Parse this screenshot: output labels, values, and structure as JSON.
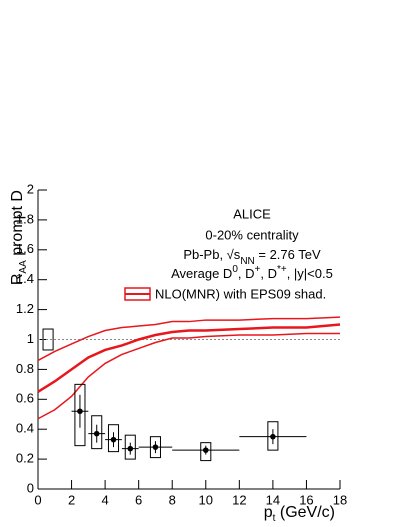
{
  "chart_data": {
    "type": "errorpoints",
    "ylabel": [
      "R",
      "AA",
      " prompt D"
    ],
    "xlabel": [
      "p",
      "t",
      " (GeV/c)"
    ],
    "annotations": [
      "ALICE",
      "0-20% centrality",
      [
        "Pb-Pb, √s",
        "NN",
        " = 2.76 TeV"
      ],
      [
        "Average D",
        "0",
        ", D",
        "+",
        ", D",
        "*+",
        ", |y|<0.5"
      ]
    ],
    "xlim": [
      0,
      18
    ],
    "xticks": [
      0,
      2,
      4,
      6,
      8,
      10,
      12,
      14,
      16,
      18
    ],
    "ylim": [
      0,
      2
    ],
    "yticks": [
      0,
      0.2,
      0.4,
      0.6,
      0.8,
      1,
      1.2,
      1.4,
      1.6,
      1.8,
      2
    ],
    "reference_line": 1,
    "normalization": {
      "x": 0.6,
      "value": 1,
      "err": 0.07
    },
    "points": {
      "color": "#000000",
      "x": [
        2.5,
        3.5,
        4.5,
        5.5,
        7,
        10,
        14
      ],
      "xerr": [
        0.5,
        0.5,
        0.5,
        0.5,
        1,
        2,
        2
      ],
      "values": [
        0.52,
        0.37,
        0.33,
        0.27,
        0.28,
        0.26,
        0.35
      ],
      "stat_err": [
        0.11,
        0.06,
        0.05,
        0.04,
        0.04,
        0.03,
        0.05
      ],
      "syst_lo": [
        0.23,
        0.1,
        0.08,
        0.07,
        0.07,
        0.07,
        0.09
      ],
      "syst_hi": [
        0.18,
        0.12,
        0.1,
        0.09,
        0.07,
        0.05,
        0.1
      ]
    },
    "model": {
      "name": "NLO(MNR) with EPS09 shad.",
      "color": "#e8171c",
      "x": [
        0,
        1,
        2,
        3,
        4,
        5,
        6,
        7,
        8,
        9,
        10,
        12,
        14,
        16,
        18
      ],
      "central": [
        0.65,
        0.72,
        0.8,
        0.88,
        0.93,
        0.96,
        1.0,
        1.03,
        1.05,
        1.06,
        1.06,
        1.07,
        1.08,
        1.08,
        1.1
      ],
      "upper": [
        0.86,
        0.92,
        0.97,
        1.02,
        1.06,
        1.08,
        1.09,
        1.1,
        1.12,
        1.12,
        1.13,
        1.13,
        1.14,
        1.14,
        1.15
      ],
      "lower": [
        0.47,
        0.53,
        0.62,
        0.75,
        0.84,
        0.9,
        0.94,
        0.98,
        1.01,
        1.01,
        1.02,
        1.03,
        1.03,
        1.04,
        1.04
      ]
    }
  }
}
